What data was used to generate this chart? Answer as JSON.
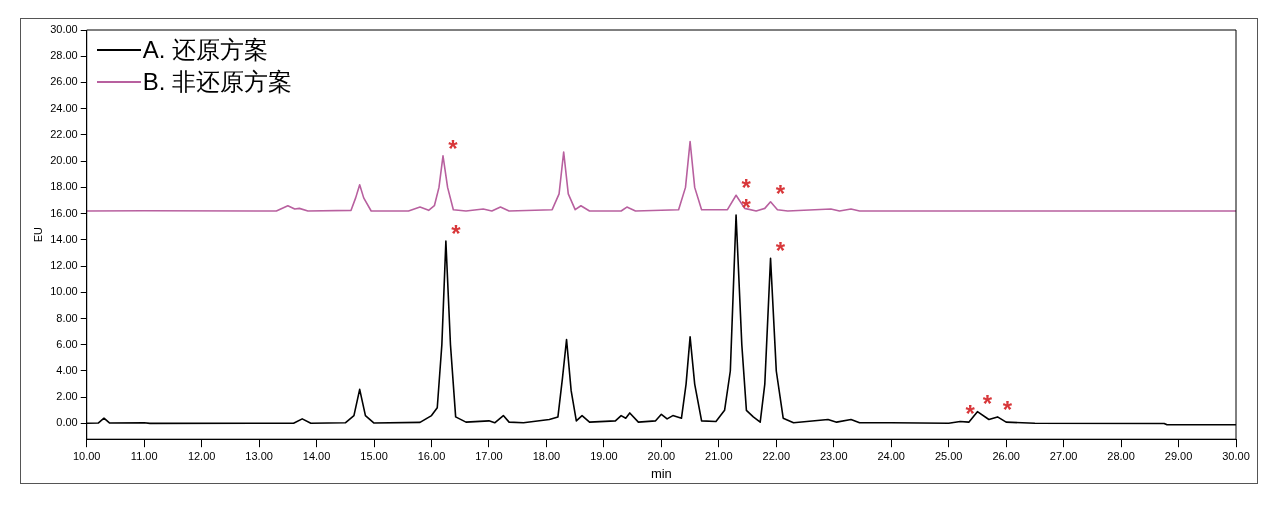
{
  "chart_data": {
    "type": "line",
    "xlabel": "min",
    "ylabel": "EU",
    "xlim": [
      10,
      30
    ],
    "ylim": [
      -1.2,
      30
    ],
    "xticks": [
      {
        "value": 10,
        "label": "10.00"
      },
      {
        "value": 11,
        "label": "11.00"
      },
      {
        "value": 12,
        "label": "12.00"
      },
      {
        "value": 13,
        "label": "13.00"
      },
      {
        "value": 14,
        "label": "14.00"
      },
      {
        "value": 15,
        "label": "15.00"
      },
      {
        "value": 16,
        "label": "16.00"
      },
      {
        "value": 17,
        "label": "17.00"
      },
      {
        "value": 18,
        "label": "18.00"
      },
      {
        "value": 19,
        "label": "19.00"
      },
      {
        "value": 20,
        "label": "20.00"
      },
      {
        "value": 21,
        "label": "21.00"
      },
      {
        "value": 22,
        "label": "22.00"
      },
      {
        "value": 23,
        "label": "23.00"
      },
      {
        "value": 24,
        "label": "24.00"
      },
      {
        "value": 25,
        "label": "25.00"
      },
      {
        "value": 26,
        "label": "26.00"
      },
      {
        "value": 27,
        "label": "27.00"
      },
      {
        "value": 28,
        "label": "28.00"
      },
      {
        "value": 29,
        "label": "29.00"
      },
      {
        "value": 30,
        "label": "30.00"
      }
    ],
    "yticks": [
      {
        "value": 0,
        "label": "0.00"
      },
      {
        "value": 2,
        "label": "2.00"
      },
      {
        "value": 4,
        "label": "4.00"
      },
      {
        "value": 6,
        "label": "6.00"
      },
      {
        "value": 8,
        "label": "8.00"
      },
      {
        "value": 10,
        "label": "10.00"
      },
      {
        "value": 12,
        "label": "12.00"
      },
      {
        "value": 14,
        "label": "14.00"
      },
      {
        "value": 16,
        "label": "16.00"
      },
      {
        "value": 18,
        "label": "18.00"
      },
      {
        "value": 20,
        "label": "20.00"
      },
      {
        "value": 22,
        "label": "22.00"
      },
      {
        "value": 24,
        "label": "24.00"
      },
      {
        "value": 26,
        "label": "26.00"
      },
      {
        "value": 28,
        "label": "28.00"
      },
      {
        "value": 30,
        "label": "30.00"
      }
    ],
    "grid": false,
    "legend": "top left",
    "series": [
      {
        "name": "A. 还原方案",
        "color": "#000000",
        "x": [
          10.0,
          10.2,
          10.3,
          10.4,
          11.0,
          11.1,
          13.6,
          13.75,
          13.9,
          14.5,
          14.65,
          14.75,
          14.85,
          15.0,
          15.8,
          16.0,
          16.1,
          16.18,
          16.25,
          16.33,
          16.42,
          16.6,
          17.0,
          17.1,
          17.25,
          17.35,
          17.6,
          18.05,
          18.2,
          18.28,
          18.35,
          18.43,
          18.52,
          18.62,
          18.75,
          19.2,
          19.3,
          19.38,
          19.45,
          19.6,
          19.9,
          20.0,
          20.1,
          20.2,
          20.35,
          20.43,
          20.5,
          20.58,
          20.7,
          20.95,
          21.1,
          21.2,
          21.3,
          21.4,
          21.48,
          21.6,
          21.72,
          21.8,
          21.9,
          22.0,
          22.12,
          22.3,
          22.9,
          23.05,
          23.3,
          23.45,
          24.0,
          25.0,
          25.2,
          25.35,
          25.5,
          25.7,
          25.85,
          26.0,
          26.5,
          28.75,
          28.8,
          30.0
        ],
        "values": [
          0.02,
          0.03,
          0.4,
          0.03,
          0.05,
          0.01,
          0.02,
          0.35,
          0.02,
          0.05,
          0.6,
          2.6,
          0.6,
          0.03,
          0.08,
          0.6,
          1.2,
          6,
          13.9,
          6,
          0.5,
          0.1,
          0.2,
          0.05,
          0.6,
          0.1,
          0.05,
          0.3,
          0.5,
          3.5,
          6.4,
          2.5,
          0.2,
          0.6,
          0.1,
          0.2,
          0.6,
          0.4,
          0.8,
          0.1,
          0.2,
          0.7,
          0.35,
          0.6,
          0.4,
          3,
          6.6,
          3,
          0.2,
          0.15,
          1.0,
          4,
          15.9,
          6,
          1.0,
          0.5,
          0.1,
          3,
          12.6,
          4,
          0.4,
          0.05,
          0.3,
          0.1,
          0.3,
          0.05,
          0.05,
          0.02,
          0.15,
          0.1,
          0.9,
          0.3,
          0.5,
          0.1,
          0.02,
          0.0,
          -0.1,
          -0.1
        ]
      },
      {
        "name": "B. 非还原方案",
        "color": "#b8609f",
        "x": [
          10,
          11.0,
          13.3,
          13.5,
          13.62,
          13.7,
          13.85,
          14.6,
          14.68,
          14.75,
          14.82,
          14.95,
          15.6,
          15.8,
          15.95,
          16.05,
          16.13,
          16.2,
          16.28,
          16.38,
          16.6,
          16.9,
          17.05,
          17.2,
          17.35,
          18.1,
          18.22,
          18.3,
          18.38,
          18.5,
          18.6,
          18.75,
          19.3,
          19.4,
          19.55,
          20.3,
          20.42,
          20.5,
          20.58,
          20.7,
          21.15,
          21.3,
          21.45,
          21.65,
          21.8,
          21.9,
          22.02,
          22.2,
          22.95,
          23.1,
          23.3,
          23.45,
          30
        ],
        "values": [
          16.2,
          16.22,
          16.2,
          16.6,
          16.35,
          16.4,
          16.2,
          16.25,
          17.2,
          18.2,
          17.2,
          16.2,
          16.2,
          16.5,
          16.25,
          16.6,
          18,
          20.4,
          18,
          16.3,
          16.2,
          16.35,
          16.2,
          16.5,
          16.2,
          16.3,
          17.5,
          20.7,
          17.5,
          16.3,
          16.6,
          16.2,
          16.2,
          16.5,
          16.2,
          16.3,
          18,
          21.5,
          18,
          16.3,
          16.3,
          17.4,
          16.4,
          16.2,
          16.4,
          16.9,
          16.3,
          16.2,
          16.35,
          16.2,
          16.35,
          16.2,
          16.2
        ]
      }
    ],
    "annotations": [
      {
        "text": "*",
        "x": 16.2,
        "y": 20.4
      },
      {
        "text": "*",
        "x": 16.25,
        "y": 13.9
      },
      {
        "text": "*",
        "x": 21.3,
        "y": 17.4
      },
      {
        "text": "*",
        "x": 21.9,
        "y": 16.9
      },
      {
        "text": "*",
        "x": 21.3,
        "y": 15.9
      },
      {
        "text": "*",
        "x": 21.9,
        "y": 12.6
      },
      {
        "text": "*",
        "x": 25.2,
        "y": 0.15
      },
      {
        "text": "*",
        "x": 25.5,
        "y": 0.9
      },
      {
        "text": "*",
        "x": 25.85,
        "y": 0.5
      }
    ]
  }
}
